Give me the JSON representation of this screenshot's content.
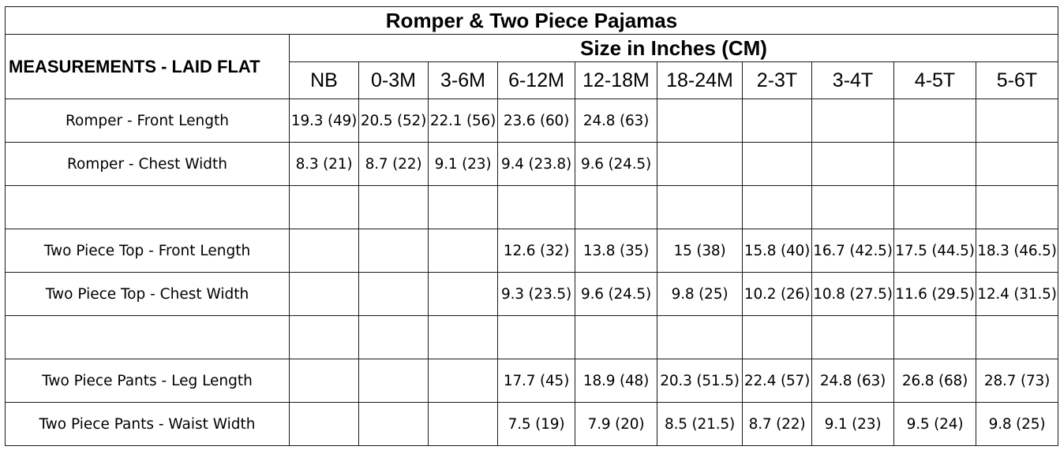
{
  "title": "Romper & Two Piece Pajamas",
  "measurement_header": "MEASUREMENTS - LAID FLAT",
  "size_header": "Size in Inches (CM)",
  "sizes": [
    "NB",
    "0-3M",
    "3-6M",
    "6-12M",
    "12-18M",
    "18-24M",
    "2-3T",
    "3-4T",
    "4-5T",
    "5-6T"
  ],
  "rows": [
    {
      "label": "Romper - Front Length",
      "values": [
        "19.3 (49)",
        "20.5 (52)",
        "22.1 (56)",
        "23.6 (60)",
        "24.8 (63)",
        "",
        "",
        "",
        "",
        ""
      ]
    },
    {
      "label": "Romper - Chest Width",
      "values": [
        "8.3 (21)",
        "8.7 (22)",
        "9.1 (23)",
        "9.4 (23.8)",
        "9.6 (24.5)",
        "",
        "",
        "",
        "",
        ""
      ]
    },
    {
      "label": "",
      "values": [
        "",
        "",
        "",
        "",
        "",
        "",
        "",
        "",
        "",
        ""
      ]
    },
    {
      "label": "Two Piece Top - Front Length",
      "values": [
        "",
        "",
        "",
        "12.6 (32)",
        "13.8 (35)",
        "15 (38)",
        "15.8 (40)",
        "16.7 (42.5)",
        "17.5 (44.5)",
        "18.3 (46.5)"
      ]
    },
    {
      "label": "Two Piece Top - Chest Width",
      "values": [
        "",
        "",
        "",
        "9.3 (23.5)",
        "9.6 (24.5)",
        "9.8 (25)",
        "10.2 (26)",
        "10.8 (27.5)",
        "11.6 (29.5)",
        "12.4 (31.5)"
      ]
    },
    {
      "label": "",
      "values": [
        "",
        "",
        "",
        "",
        "",
        "",
        "",
        "",
        "",
        ""
      ]
    },
    {
      "label": "Two Piece Pants - Leg Length",
      "values": [
        "",
        "",
        "",
        "17.7 (45)",
        "18.9 (48)",
        "20.3 (51.5)",
        "22.4 (57)",
        "24.8 (63)",
        "26.8 (68)",
        "28.7 (73)"
      ]
    },
    {
      "label": "Two Piece Pants - Waist Width",
      "values": [
        "",
        "",
        "",
        "7.5 (19)",
        "7.9 (20)",
        "8.5 (21.5)",
        "8.7 (22)",
        "9.1 (23)",
        "9.5 (24)",
        "9.8 (25)"
      ]
    }
  ]
}
